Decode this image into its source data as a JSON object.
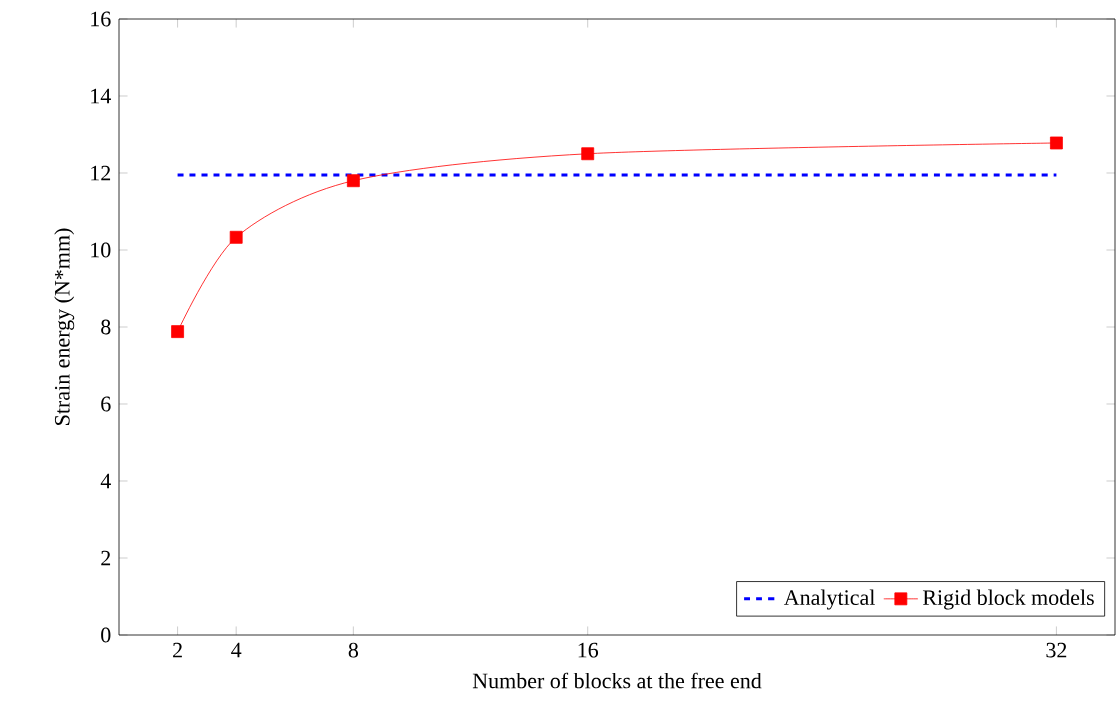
{
  "chart_data": {
    "type": "line",
    "xlabel": "Number of blocks at the free end",
    "ylabel": "Strain energy (N*mm)",
    "xlim": [
      0,
      34
    ],
    "ylim": [
      0,
      16
    ],
    "xticks": [
      2,
      4,
      8,
      16,
      32
    ],
    "yticks": [
      0,
      2,
      4,
      6,
      8,
      10,
      12,
      14,
      16
    ],
    "grid": false,
    "legend": "bottom right",
    "series": [
      {
        "name": "Analytical",
        "color": "#0000ff",
        "line_style": "dashed",
        "marker": "none",
        "x": [
          2,
          32
        ],
        "values": [
          11.95,
          11.95
        ]
      },
      {
        "name": "Rigid block models",
        "color": "#ff0000",
        "line_style": "solid",
        "marker": "square",
        "x": [
          2,
          4,
          8,
          16,
          32
        ],
        "values": [
          7.88,
          10.33,
          11.8,
          12.5,
          12.78
        ]
      }
    ]
  }
}
